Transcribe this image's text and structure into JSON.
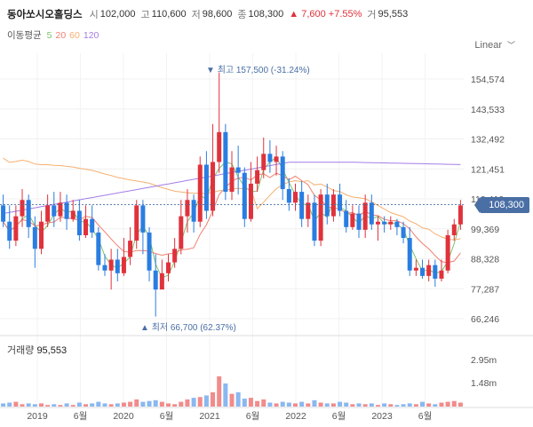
{
  "header": {
    "name": "동아쏘시오홀딩스",
    "open_label": "시",
    "open": "102,000",
    "high_label": "고",
    "high": "110,600",
    "low_label": "저",
    "low": "98,600",
    "close_label": "종",
    "close": "108,300",
    "change": "▲ 7,600 +7.55%",
    "volume_label": "거",
    "volume": "95,553"
  },
  "ma": {
    "label": "이동평균",
    "items": [
      {
        "period": "5",
        "color": "#7cc26a"
      },
      {
        "period": "20",
        "color": "#f08070"
      },
      {
        "period": "60",
        "color": "#f5b070"
      },
      {
        "period": "120",
        "color": "#a37ee6"
      }
    ]
  },
  "scale": {
    "label": "Linear"
  },
  "price_axis": [
    "154,574",
    "143,533",
    "132,492",
    "121,451",
    "110,410",
    "99,369",
    "88,328",
    "77,287",
    "66,246"
  ],
  "current_price": "108,300",
  "annotations": {
    "high": "최고 157,500 (-31.24%)",
    "low": "최저 66,700 (62.37%)"
  },
  "volume": {
    "label": "거래량",
    "value": "95,553",
    "axis": [
      "2.95m",
      "1.48m"
    ]
  },
  "time_axis": [
    "2019",
    "6월",
    "2020",
    "6월",
    "2021",
    "6월",
    "2022",
    "6월",
    "2023",
    "6월"
  ],
  "colors": {
    "up": "#e0323c",
    "down": "#2a7de1",
    "vol_up": "#f28b8b",
    "vol_down": "#8ab8f0",
    "tag": "#4a6fa5"
  },
  "chart_data": {
    "type": "candlestick",
    "candles": [
      [
        108,
        102,
        112,
        100
      ],
      [
        102,
        95,
        108,
        92
      ],
      [
        95,
        104,
        108,
        93
      ],
      [
        104,
        110,
        114,
        100
      ],
      [
        110,
        100,
        112,
        96
      ],
      [
        100,
        92,
        104,
        85
      ],
      [
        92,
        102,
        106,
        90
      ],
      [
        102,
        108,
        112,
        100
      ],
      [
        108,
        104,
        113,
        100
      ],
      [
        104,
        109,
        113,
        102
      ],
      [
        109,
        103,
        112,
        99
      ],
      [
        103,
        106,
        110,
        102
      ],
      [
        106,
        97,
        110,
        95
      ],
      [
        97,
        103,
        108,
        96
      ],
      [
        103,
        98,
        108,
        96
      ],
      [
        98,
        86,
        100,
        84
      ],
      [
        86,
        84,
        90,
        82
      ],
      [
        84,
        88,
        92,
        77
      ],
      [
        88,
        83,
        92,
        80
      ],
      [
        83,
        89,
        96,
        82
      ],
      [
        89,
        95,
        100,
        86
      ],
      [
        95,
        108,
        110,
        92
      ],
      [
        108,
        98,
        110,
        90
      ],
      [
        98,
        84,
        100,
        80
      ],
      [
        84,
        77,
        90,
        67
      ],
      [
        77,
        83,
        88,
        80
      ],
      [
        83,
        87,
        90,
        80
      ],
      [
        87,
        92,
        96,
        85
      ],
      [
        92,
        104,
        110,
        90
      ],
      [
        104,
        110,
        114,
        98
      ],
      [
        110,
        102,
        112,
        98
      ],
      [
        102,
        123,
        126,
        100
      ],
      [
        123,
        106,
        128,
        103
      ],
      [
        106,
        124,
        138,
        104
      ],
      [
        124,
        135,
        157,
        120
      ],
      [
        135,
        113,
        138,
        110
      ],
      [
        113,
        122,
        128,
        110
      ],
      [
        122,
        120,
        130,
        112
      ],
      [
        120,
        103,
        122,
        100
      ],
      [
        103,
        116,
        124,
        102
      ],
      [
        116,
        121,
        126,
        113
      ],
      [
        121,
        127,
        133,
        118
      ],
      [
        127,
        124,
        132,
        120
      ],
      [
        124,
        126,
        130,
        119
      ],
      [
        126,
        114,
        128,
        110
      ],
      [
        114,
        109,
        118,
        106
      ],
      [
        109,
        113,
        116,
        106
      ],
      [
        113,
        103,
        117,
        100
      ],
      [
        103,
        109,
        112,
        100
      ],
      [
        109,
        95,
        112,
        93
      ],
      [
        95,
        112,
        114,
        93
      ],
      [
        112,
        104,
        116,
        101
      ],
      [
        104,
        112,
        114,
        102
      ],
      [
        112,
        106,
        116,
        104
      ],
      [
        106,
        100,
        110,
        98
      ],
      [
        100,
        105,
        108,
        99
      ],
      [
        105,
        99,
        108,
        96
      ],
      [
        99,
        109,
        112,
        96
      ],
      [
        109,
        101,
        112,
        99
      ],
      [
        101,
        102,
        104,
        95
      ],
      [
        102,
        101,
        104,
        98
      ],
      [
        101,
        102,
        104,
        99
      ],
      [
        102,
        100,
        103,
        97
      ],
      [
        100,
        96,
        102,
        94
      ],
      [
        96,
        84,
        100,
        82
      ],
      [
        84,
        85,
        88,
        82
      ],
      [
        85,
        82,
        88,
        81
      ],
      [
        82,
        86,
        88,
        80
      ],
      [
        86,
        81,
        88,
        78
      ],
      [
        81,
        84,
        88,
        80
      ],
      [
        84,
        97,
        99,
        83
      ],
      [
        97,
        101,
        103,
        95
      ],
      [
        101,
        108,
        110,
        99
      ]
    ],
    "volume": [
      0.2,
      0.25,
      0.3,
      0.15,
      0.2,
      0.15,
      0.2,
      0.1,
      0.15,
      0.1,
      0.2,
      0.1,
      0.25,
      0.15,
      0.2,
      0.3,
      0.2,
      0.15,
      0.2,
      0.25,
      0.3,
      0.45,
      0.3,
      0.35,
      0.4,
      0.3,
      0.2,
      0.15,
      0.3,
      0.45,
      0.55,
      0.6,
      0.7,
      0.9,
      1.9,
      1.45,
      0.8,
      0.9,
      0.5,
      0.55,
      0.35,
      0.45,
      0.25,
      0.2,
      0.3,
      0.25,
      0.2,
      0.3,
      0.2,
      0.4,
      0.25,
      0.2,
      0.2,
      0.3,
      0.25,
      0.15,
      0.2,
      0.15,
      0.2,
      0.1,
      0.2,
      0.15,
      0.1,
      0.15,
      0.2,
      0.15,
      0.3,
      0.2,
      0.15,
      0.25,
      0.3,
      0.35,
      0.25
    ],
    "ylim": [
      66246,
      154574
    ],
    "volume_max": 2.95
  }
}
